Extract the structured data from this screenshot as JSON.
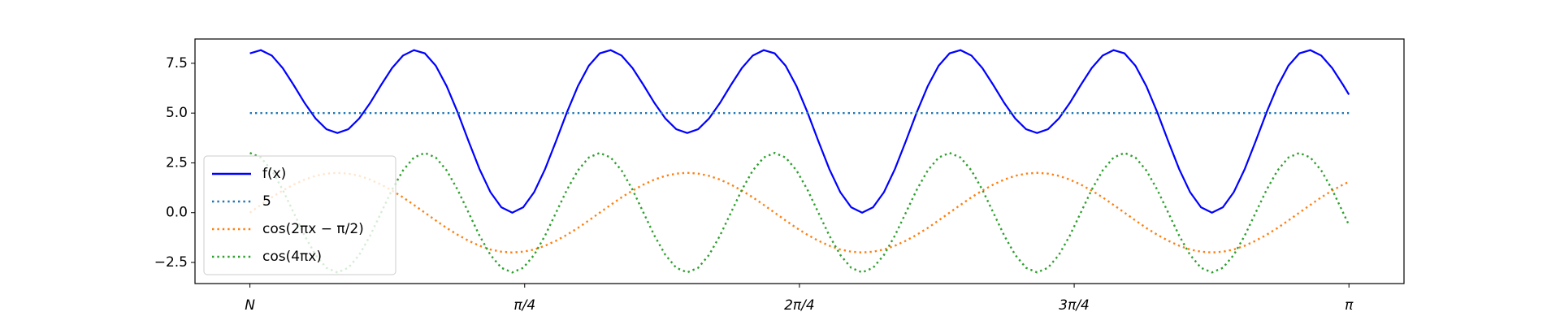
{
  "chart_data": {
    "type": "line",
    "x": [
      0,
      0.03125,
      0.0625,
      0.09375,
      0.125,
      0.15625,
      0.1875,
      0.21875,
      0.25,
      0.28125,
      0.3125,
      0.34375,
      0.375,
      0.40625,
      0.4375,
      0.46875,
      0.5,
      0.53125,
      0.5625,
      0.59375,
      0.625,
      0.65625,
      0.6875,
      0.71875,
      0.75,
      0.78125,
      0.8125,
      0.84375,
      0.875,
      0.90625,
      0.9375,
      0.96875,
      1,
      1.03125,
      1.0625,
      1.09375,
      1.125,
      1.15625,
      1.1875,
      1.21875,
      1.25,
      1.28125,
      1.3125,
      1.34375,
      1.375,
      1.40625,
      1.4375,
      1.46875,
      1.5,
      1.53125,
      1.5625,
      1.59375,
      1.625,
      1.65625,
      1.6875,
      1.71875,
      1.75,
      1.78125,
      1.8125,
      1.84375,
      1.875,
      1.90625,
      1.9375,
      1.96875,
      2,
      2.03125,
      2.0625,
      2.09375,
      2.125,
      2.15625,
      2.1875,
      2.21875,
      2.25,
      2.28125,
      2.3125,
      2.34375,
      2.375,
      2.40625,
      2.4375,
      2.46875,
      2.5,
      2.53125,
      2.5625,
      2.59375,
      2.625,
      2.65625,
      2.6875,
      2.71875,
      2.75,
      2.78125,
      2.8125,
      2.84375,
      2.875,
      2.90625,
      2.9375,
      2.96875,
      3,
      3.03125,
      3.0625,
      3.09375,
      3.125,
      3.1416
    ],
    "series": [
      {
        "name": "f(x)",
        "color": "#0000ff",
        "style": "solid",
        "values": [
          8,
          8.16,
          7.89,
          7.26,
          6.41,
          5.51,
          4.73,
          4.19,
          4,
          4.19,
          4.73,
          5.51,
          6.41,
          7.26,
          7.89,
          8.16,
          8,
          7.38,
          6.35,
          5.04,
          3.59,
          2.19,
          1.03,
          0.27,
          0,
          0.27,
          1.03,
          2.19,
          3.59,
          5.04,
          6.35,
          7.38,
          8,
          8.16,
          7.89,
          7.26,
          6.41,
          5.51,
          4.73,
          4.19,
          4,
          4.19,
          4.73,
          5.51,
          6.41,
          7.26,
          7.89,
          8.16,
          8,
          7.38,
          6.35,
          5.04,
          3.59,
          2.19,
          1.03,
          0.27,
          0,
          0.27,
          1.03,
          2.19,
          3.59,
          5.04,
          6.35,
          7.38,
          8,
          8.16,
          7.89,
          7.26,
          6.41,
          5.51,
          4.73,
          4.19,
          4,
          4.19,
          4.73,
          5.51,
          6.41,
          7.26,
          7.89,
          8.16,
          8,
          7.38,
          6.35,
          5.04,
          3.59,
          2.19,
          1.03,
          0.27,
          0,
          0.27,
          1.03,
          2.19,
          3.59,
          5.04,
          6.35,
          7.38,
          8,
          8.16,
          7.89,
          7.26,
          6.41,
          5.93
        ]
      },
      {
        "name": "5",
        "color": "#1f77b4",
        "style": "dotted",
        "values": [
          5,
          5,
          5,
          5,
          5,
          5,
          5,
          5,
          5,
          5,
          5,
          5,
          5,
          5,
          5,
          5,
          5,
          5,
          5,
          5,
          5,
          5,
          5,
          5,
          5,
          5,
          5,
          5,
          5,
          5,
          5,
          5,
          5,
          5,
          5,
          5,
          5,
          5,
          5,
          5,
          5,
          5,
          5,
          5,
          5,
          5,
          5,
          5,
          5,
          5,
          5,
          5,
          5,
          5,
          5,
          5,
          5,
          5,
          5,
          5,
          5,
          5,
          5,
          5,
          5,
          5,
          5,
          5,
          5,
          5,
          5,
          5,
          5,
          5,
          5,
          5,
          5,
          5,
          5,
          5,
          5,
          5,
          5,
          5,
          5,
          5,
          5,
          5,
          5,
          5,
          5,
          5,
          5,
          5,
          5,
          5,
          5,
          5,
          5,
          5,
          5,
          5
        ]
      },
      {
        "name": "cos(2πx − π/2)",
        "color": "#ff7f0e",
        "style": "dotted",
        "values": [
          0,
          0.39,
          0.77,
          1.11,
          1.41,
          1.66,
          1.85,
          1.96,
          2,
          1.96,
          1.85,
          1.66,
          1.41,
          1.11,
          0.77,
          0.39,
          0,
          -0.39,
          -0.77,
          -1.11,
          -1.41,
          -1.66,
          -1.85,
          -1.96,
          -2,
          -1.96,
          -1.85,
          -1.66,
          -1.41,
          -1.11,
          -0.77,
          -0.39,
          0,
          0.39,
          0.77,
          1.11,
          1.41,
          1.66,
          1.85,
          1.96,
          2,
          1.96,
          1.85,
          1.66,
          1.41,
          1.11,
          0.77,
          0.39,
          0,
          -0.39,
          -0.77,
          -1.11,
          -1.41,
          -1.66,
          -1.85,
          -1.96,
          -2,
          -1.96,
          -1.85,
          -1.66,
          -1.41,
          -1.11,
          -0.77,
          -0.39,
          0,
          0.39,
          0.77,
          1.11,
          1.41,
          1.66,
          1.85,
          1.96,
          2,
          1.96,
          1.85,
          1.66,
          1.41,
          1.11,
          0.77,
          0.39,
          0,
          -0.39,
          -0.77,
          -1.11,
          -1.41,
          -1.66,
          -1.85,
          -1.96,
          -2,
          -1.96,
          -1.85,
          -1.66,
          -1.41,
          -1.11,
          -0.77,
          -0.39,
          0,
          0.39,
          0.77,
          1.11,
          1.41,
          1.55
        ]
      },
      {
        "name": "cos(4πx)",
        "color": "#2ca02c",
        "style": "dotted",
        "values": [
          3,
          2.77,
          2.12,
          1.15,
          0,
          -1.15,
          -2.12,
          -2.77,
          -3,
          -2.77,
          -2.12,
          -1.15,
          0,
          1.15,
          2.12,
          2.77,
          3,
          2.77,
          2.12,
          1.15,
          0,
          -1.15,
          -2.12,
          -2.77,
          -3,
          -2.77,
          -2.12,
          -1.15,
          0,
          1.15,
          2.12,
          2.77,
          3,
          2.77,
          2.12,
          1.15,
          0,
          -1.15,
          -2.12,
          -2.77,
          -3,
          -2.77,
          -2.12,
          -1.15,
          0,
          1.15,
          2.12,
          2.77,
          3,
          2.77,
          2.12,
          1.15,
          0,
          -1.15,
          -2.12,
          -2.77,
          -3,
          -2.77,
          -2.12,
          -1.15,
          0,
          1.15,
          2.12,
          2.77,
          3,
          2.77,
          2.12,
          1.15,
          0,
          -1.15,
          -2.12,
          -2.77,
          -3,
          -2.77,
          -2.12,
          -1.15,
          0,
          1.15,
          2.12,
          2.77,
          3,
          2.77,
          2.12,
          1.15,
          0,
          -1.15,
          -2.12,
          -2.77,
          -3,
          -2.77,
          -2.12,
          -1.15,
          0,
          1.15,
          2.12,
          2.77,
          3,
          2.77,
          2.12,
          1.15,
          0,
          -0.62
        ]
      }
    ],
    "xlim": [
      -0.157,
      3.299
    ],
    "ylim": [
      -3.56,
      8.72
    ],
    "xticks": [
      {
        "value": 0,
        "label": "N"
      },
      {
        "value": 0.7854,
        "label": "π/4"
      },
      {
        "value": 1.5708,
        "label": "2π/4"
      },
      {
        "value": 2.3562,
        "label": "3π/4"
      },
      {
        "value": 3.1416,
        "label": "π"
      }
    ],
    "yticks": [
      {
        "value": -2.5,
        "label": "−2.5"
      },
      {
        "value": 0,
        "label": "0.0"
      },
      {
        "value": 2.5,
        "label": "2.5"
      },
      {
        "value": 5,
        "label": "5.0"
      },
      {
        "value": 7.5,
        "label": "7.5"
      }
    ],
    "grid": false,
    "legend": "lower left"
  }
}
